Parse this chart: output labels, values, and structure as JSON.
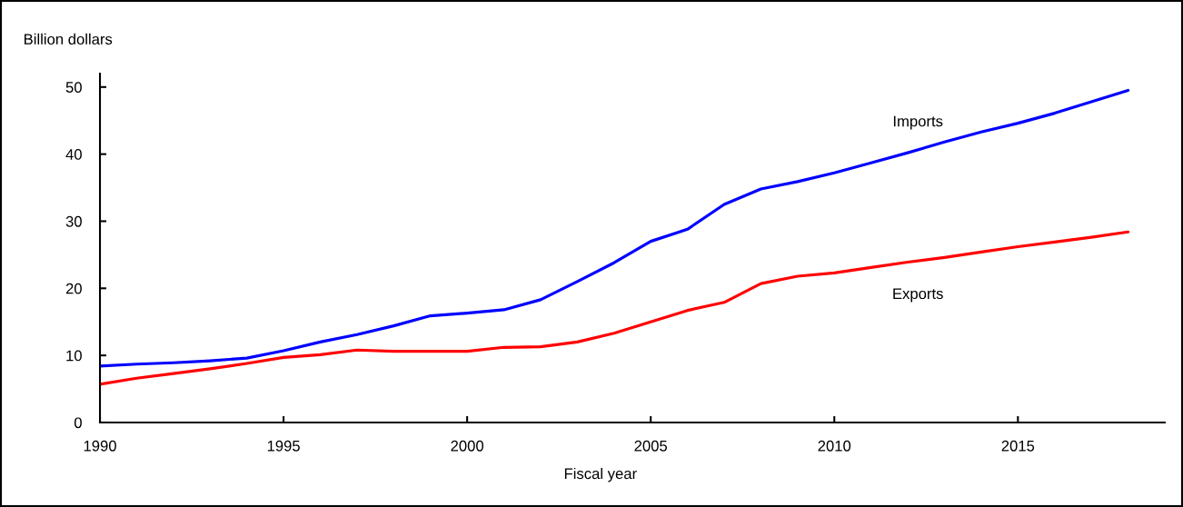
{
  "chart_data": {
    "type": "line",
    "xlabel": "Fiscal year",
    "ylabel": "Billion dollars",
    "x": [
      1990,
      1991,
      1992,
      1993,
      1994,
      1995,
      1996,
      1997,
      1998,
      1999,
      2000,
      2001,
      2002,
      2003,
      2004,
      2005,
      2006,
      2007,
      2008,
      2009,
      2010,
      2011,
      2012,
      2013,
      2014,
      2015,
      2016,
      2017,
      2018
    ],
    "series": [
      {
        "name": "Imports",
        "color": "#0000ff",
        "values": [
          8.4,
          8.7,
          8.9,
          9.2,
          9.6,
          10.7,
          12.0,
          13.1,
          14.4,
          15.9,
          16.3,
          16.8,
          18.3,
          21.0,
          23.8,
          27.0,
          28.8,
          32.5,
          34.8,
          35.9,
          37.2,
          38.7,
          40.2,
          41.8,
          43.3,
          44.6,
          46.1,
          47.8,
          49.5
        ]
      },
      {
        "name": "Exports",
        "color": "#ff0000",
        "values": [
          5.7,
          6.6,
          7.3,
          8.0,
          8.8,
          9.7,
          10.1,
          10.8,
          10.6,
          10.6,
          10.6,
          11.2,
          11.3,
          12.0,
          13.3,
          15.0,
          16.7,
          17.9,
          20.7,
          21.8,
          22.3,
          23.1,
          23.9,
          24.6,
          25.4,
          26.2,
          26.9,
          27.6,
          28.4
        ]
      }
    ],
    "xlim": [
      1990,
      2019
    ],
    "ylim": [
      0,
      52
    ],
    "xticks": [
      1990,
      1995,
      2000,
      2005,
      2010,
      2015
    ],
    "yticks": [
      0,
      10,
      20,
      30,
      40,
      50
    ],
    "line_style": "solid"
  }
}
